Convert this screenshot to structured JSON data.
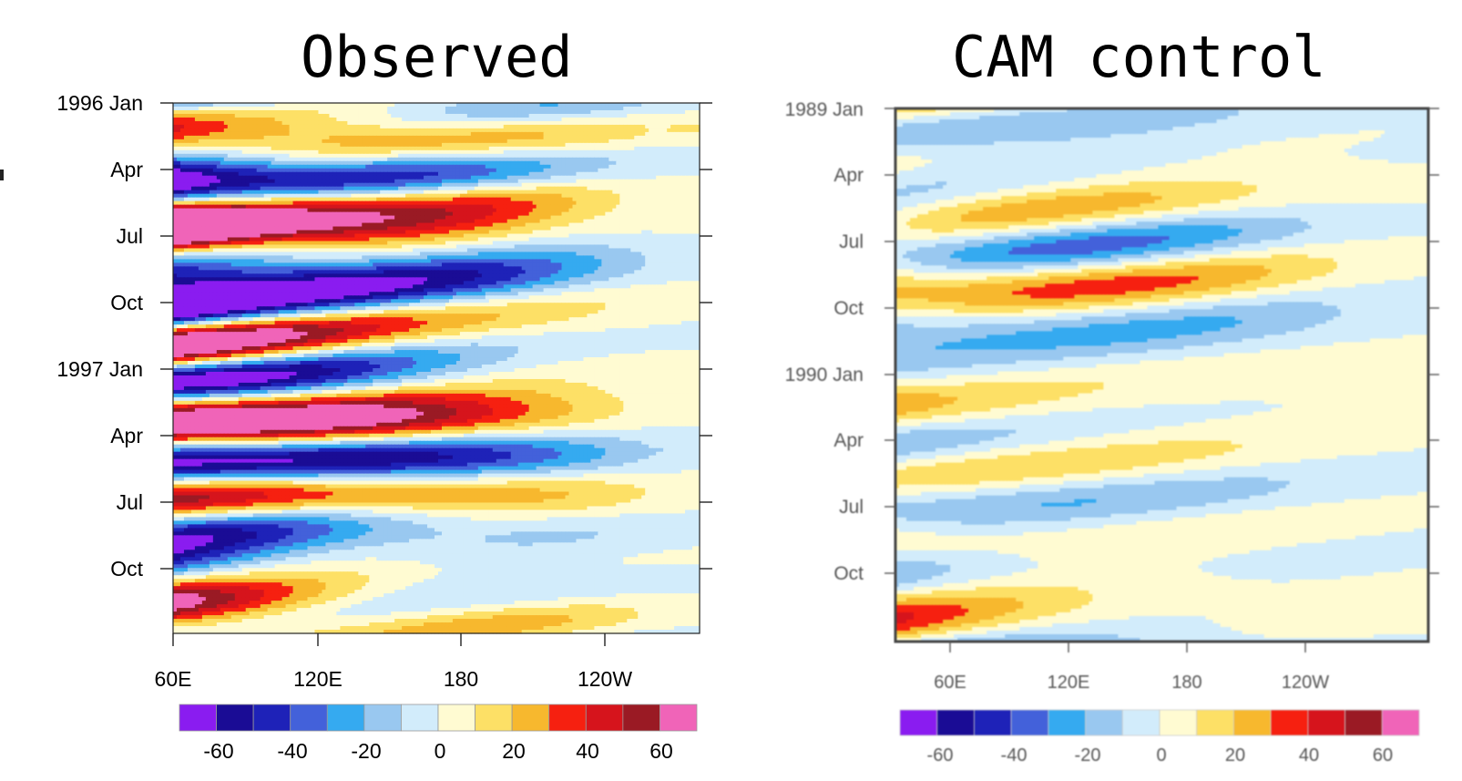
{
  "chart_data": [
    {
      "type": "heatmap",
      "title": "Observed",
      "xlabel": "",
      "ylabel": "",
      "x_ticks": [
        "60E",
        "120E",
        "180",
        "120W"
      ],
      "y_ticks": [
        "1996 Jan",
        "Apr",
        "Jul",
        "Oct",
        "1997 Jan",
        "Apr",
        "Jul",
        "Oct"
      ],
      "xlim": [
        "60E",
        "140W"
      ],
      "ylim": [
        "1996 Jan",
        "1997 Dec"
      ],
      "colorbar": {
        "ticks": [
          "-60",
          "-40",
          "-20",
          "0",
          "20",
          "40",
          "60"
        ],
        "levels": [
          -70,
          -60,
          -50,
          -40,
          -30,
          -20,
          -10,
          0,
          10,
          20,
          30,
          40,
          50,
          60,
          70
        ]
      },
      "amplitude": 1.0,
      "seed": 7
    },
    {
      "type": "heatmap",
      "title": "CAM control",
      "xlabel": "",
      "ylabel": "",
      "x_ticks": [
        "60E",
        "120E",
        "180",
        "120W"
      ],
      "y_ticks": [
        "1989 Jan",
        "Apr",
        "Jul",
        "Oct",
        "1990 Jan",
        "Apr",
        "Jul",
        "Oct"
      ],
      "xlim": [
        "60E",
        "140W"
      ],
      "ylim": [
        "1989 Jan",
        "1990 Dec"
      ],
      "colorbar": {
        "ticks": [
          "-60",
          "-40",
          "-20",
          "0",
          "20",
          "40",
          "60"
        ],
        "levels": [
          -70,
          -60,
          -50,
          -40,
          -30,
          -20,
          -10,
          0,
          10,
          20,
          30,
          40,
          50,
          60,
          70
        ]
      },
      "amplitude": 0.45,
      "seed": 23
    }
  ],
  "colors": [
    "#8a1cf0",
    "#1a0c95",
    "#1e22b8",
    "#4361da",
    "#35aaf0",
    "#99c8f0",
    "#d2ecfb",
    "#fffbd2",
    "#fde066",
    "#f7b82e",
    "#f62010",
    "#d6141c",
    "#9a1a24",
    "#f064b8"
  ]
}
